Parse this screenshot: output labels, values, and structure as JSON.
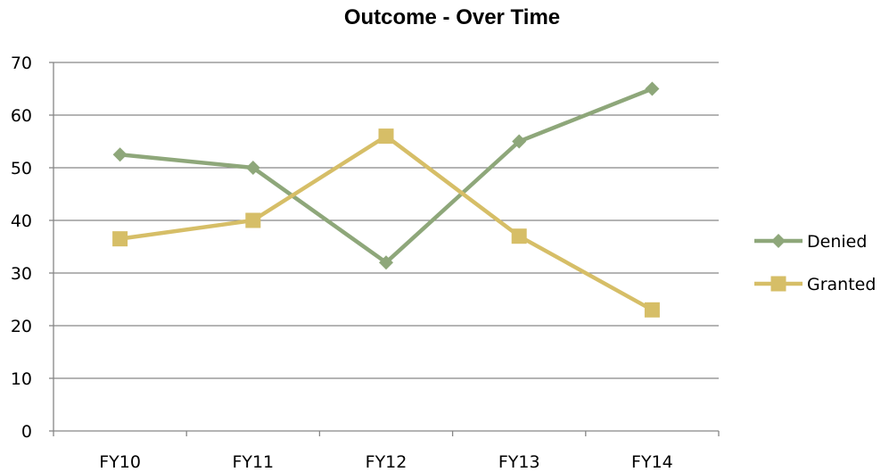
{
  "chart_data": {
    "type": "line",
    "title": "Outcome - Over Time",
    "xlabel": "",
    "ylabel": "",
    "categories": [
      "FY10",
      "FY11",
      "FY12",
      "FY13",
      "FY14"
    ],
    "ylim": [
      0,
      70
    ],
    "yticks": [
      0,
      10,
      20,
      30,
      40,
      50,
      60,
      70
    ],
    "grid": true,
    "legend_position": "right",
    "series": [
      {
        "name": "Denied",
        "values": [
          52.5,
          50,
          32,
          55,
          65
        ],
        "color": "#8EA77A",
        "marker": "diamond"
      },
      {
        "name": "Granted",
        "values": [
          36.5,
          40,
          56,
          37,
          23
        ],
        "color": "#D6BE67",
        "marker": "square"
      }
    ]
  }
}
